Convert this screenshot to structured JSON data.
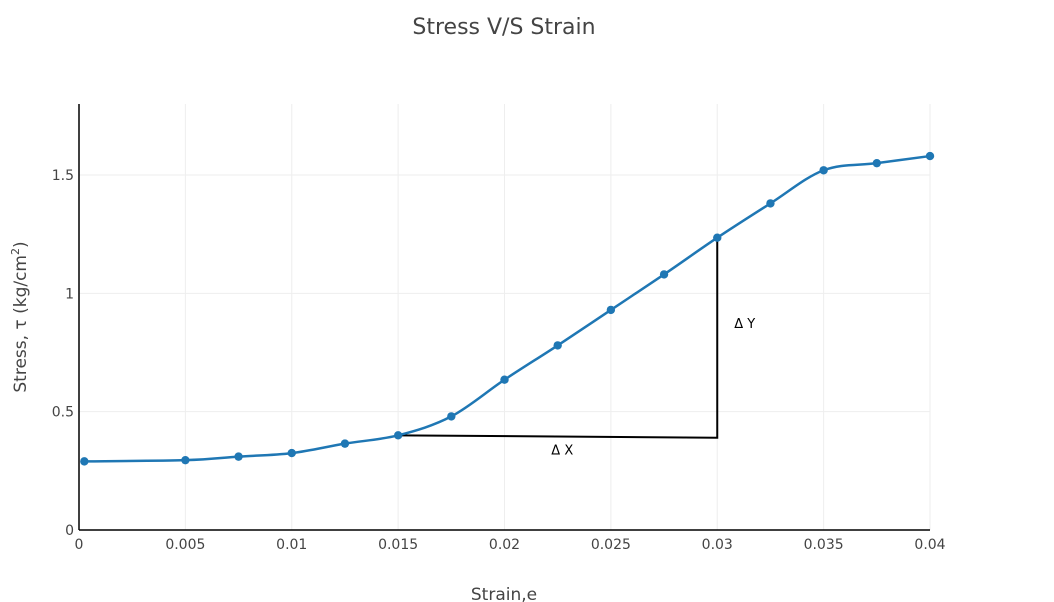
{
  "chart_data": {
    "type": "line",
    "title": "Stress V/S Strain",
    "xlabel": "Strain,e",
    "ylabel_main": "Stress, ",
    "ylabel_sym": "τ",
    "ylabel_unit": " (kg/cm",
    "ylabel_sup": "2",
    "ylabel_close": ")",
    "xlim": [
      0,
      0.04
    ],
    "ylim": [
      0,
      1.8
    ],
    "x_ticks": [
      0,
      0.005,
      0.01,
      0.015,
      0.02,
      0.025,
      0.03,
      0.035,
      0.04
    ],
    "x_tick_labels": [
      "0",
      "0.005",
      "0.01",
      "0.015",
      "0.02",
      "0.025",
      "0.03",
      "0.035",
      "0.04"
    ],
    "y_ticks": [
      0,
      0.5,
      1,
      1.5
    ],
    "y_tick_labels": [
      "0",
      "0.5",
      "1",
      "1.5"
    ],
    "grid": true,
    "series": [
      {
        "color": "#1f77b4",
        "x": [
          0.00025,
          0.005,
          0.0075,
          0.01,
          0.0125,
          0.015,
          0.0175,
          0.02,
          0.0225,
          0.025,
          0.0275,
          0.03,
          0.0325,
          0.035,
          0.0375,
          0.04
        ],
        "y": [
          0.29,
          0.295,
          0.31,
          0.325,
          0.365,
          0.4,
          0.48,
          0.635,
          0.78,
          0.93,
          1.08,
          1.235,
          1.38,
          1.52,
          1.55,
          1.58
        ]
      }
    ],
    "slope_triangle": {
      "color": "#000000",
      "points": [
        [
          0.015,
          0.4
        ],
        [
          0.03,
          0.39
        ],
        [
          0.03,
          1.235
        ]
      ]
    },
    "annotations": [
      {
        "text": "Δ X",
        "x": 0.0222,
        "y": 0.34
      },
      {
        "text": "Δ Y",
        "x": 0.0308,
        "y": 0.875
      }
    ]
  }
}
